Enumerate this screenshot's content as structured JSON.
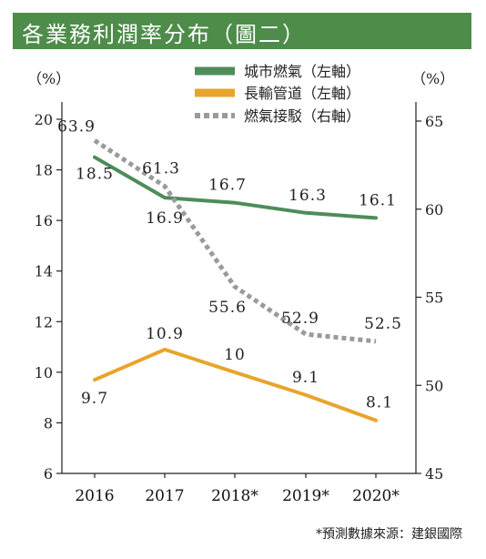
{
  "header": {
    "title": "各業務利潤率分布（圖二）"
  },
  "footnote": "*預測數據來源：建銀國際",
  "chart_data": {
    "type": "line",
    "categories": [
      "2016",
      "2017",
      "2018*",
      "2019*",
      "2020*"
    ],
    "left_axis": {
      "label": "（%）",
      "range": [
        6,
        20
      ],
      "ticks": [
        "6",
        "8",
        "10",
        "12",
        "14",
        "16",
        "18",
        "20"
      ]
    },
    "right_axis": {
      "label": "（%）",
      "range": [
        45,
        66
      ],
      "ticks": [
        "45",
        "50",
        "55",
        "60",
        "65"
      ]
    },
    "series": [
      {
        "name": "城市燃氣（左軸）",
        "axis": "left",
        "color": "#4e8c5a",
        "style": "solid",
        "values": [
          18.5,
          16.9,
          16.7,
          16.3,
          16.1
        ],
        "labels": [
          "18.5",
          "16.9",
          "16.7",
          "16.3",
          "16.1"
        ]
      },
      {
        "name": "長輸管道（左軸）",
        "axis": "left",
        "color": "#e8a42c",
        "style": "solid",
        "values": [
          9.7,
          10.9,
          10,
          9.1,
          8.1
        ],
        "labels": [
          "9.7",
          "10.9",
          "10",
          "9.1",
          "8.1"
        ]
      },
      {
        "name": "燃氣接駁（右軸）",
        "axis": "right",
        "color": "#9a9a9a",
        "style": "dotted",
        "values": [
          63.9,
          61.3,
          55.6,
          52.9,
          52.5
        ],
        "labels": [
          "63.9",
          "61.3",
          "55.6",
          "52.9",
          "52.5"
        ]
      }
    ],
    "legend_position": "top-right",
    "grid": false
  }
}
